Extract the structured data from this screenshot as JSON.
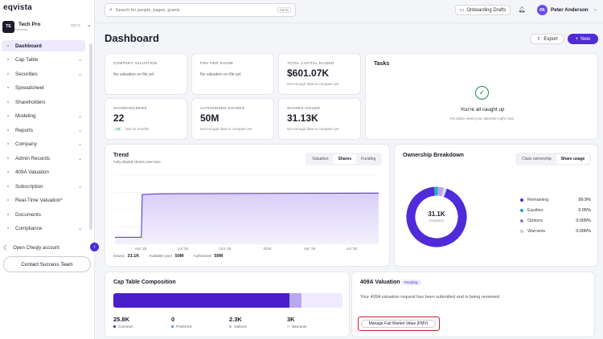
{
  "app": {
    "logo": "eqvista"
  },
  "org": {
    "initials": "TE",
    "name": "Tech Pro",
    "plan": "Premium",
    "shortcut": "Ctrl O"
  },
  "nav": [
    {
      "label": "Dashboard",
      "icon": "dashboard-icon",
      "active": true,
      "chev": false
    },
    {
      "label": "Cap Table",
      "icon": "cap-table-icon",
      "chev": true
    },
    {
      "label": "Securities",
      "icon": "securities-icon",
      "chev": true
    },
    {
      "label": "Spreadsheet",
      "icon": "spreadsheet-icon",
      "chev": false
    },
    {
      "label": "Shareholders",
      "icon": "shareholders-icon",
      "chev": false
    },
    {
      "label": "Modeling",
      "icon": "modeling-icon",
      "chev": true
    },
    {
      "label": "Reports",
      "icon": "reports-icon",
      "chev": true
    },
    {
      "label": "Company",
      "icon": "company-icon",
      "chev": true
    },
    {
      "label": "Admin Records",
      "icon": "admin-records-icon",
      "chev": true
    },
    {
      "label": "409A Valuation",
      "icon": "valuation-icon",
      "chev": false
    },
    {
      "label": "Subscription",
      "icon": "subscription-icon",
      "chev": true
    },
    {
      "label": "Real-Time Valuation*",
      "icon": "realtime-icon",
      "chev": false
    },
    {
      "label": "Documents",
      "icon": "documents-icon",
      "chev": false
    },
    {
      "label": "Compliance",
      "icon": "compliance-icon",
      "chev": true
    }
  ],
  "sidebar_footer": {
    "cheqly": "Open Cheqly account",
    "support": "Contact Success Team"
  },
  "topbar": {
    "search_placeholder": "Search for people, pages, grants",
    "search_kbd": "Ctrl K",
    "onboarding": "Onboarding Drafts",
    "user_initials": "PA",
    "user_name": "Peter Anderson"
  },
  "page": {
    "title": "Dashboard",
    "export": "Export",
    "new": "New"
  },
  "stats": {
    "company_valuation": {
      "label": "COMPANY VALUATION",
      "text": "No valuation on file yet"
    },
    "fmv": {
      "label": "FMV PER SHARE",
      "text": "No valuation on file yet"
    },
    "capital": {
      "label": "TOTAL CAPITAL RAISED",
      "value": "$601.07K",
      "note": "Not enough data to compare yet"
    },
    "shareholders": {
      "label": "SHAREHOLDERS",
      "value": "22",
      "delta": "+4",
      "note": "last 12 months"
    },
    "authorized": {
      "label": "AUTHORIZED SHARES",
      "value": "50M",
      "note": "Not enough data to compare yet"
    },
    "issued": {
      "label": "SHARES ISSUED",
      "value": "31.13K",
      "note": "Not enough data to compare yet"
    }
  },
  "tasks": {
    "title": "Tasks",
    "heading": "You're all caught up",
    "text": "No tasks need your attention right now."
  },
  "trend": {
    "title": "Trend",
    "subtitle": "Fully-diluted shares over time",
    "tabs": [
      "Valuation",
      "Shares",
      "Funding"
    ],
    "active_tab": "Shares",
    "footer": [
      {
        "k": "Issued",
        "v": "31.1K"
      },
      {
        "k": "Available pool",
        "v": "50M"
      },
      {
        "k": "Authorized",
        "v": "50M"
      }
    ]
  },
  "chart_data": {
    "type": "area",
    "x_ticks": [
      "Apr '25",
      "Jul '25",
      "Oct '25",
      "2026",
      "Apr '26",
      "Jul '26"
    ],
    "x": [
      0,
      0.6,
      0.62,
      1.0,
      6.0
    ],
    "values": [
      0.1,
      0.1,
      0.72,
      0.73,
      0.74
    ],
    "ylim": [
      0,
      1
    ]
  },
  "ownership": {
    "title": "Ownership Breakdown",
    "tabs": [
      "Class ownership",
      "Share usage"
    ],
    "active_tab": "Share usage",
    "center_value": "31.1K",
    "center_label": "SHARES",
    "legend": [
      {
        "label": "Remaining",
        "value": "99.9%",
        "color": "#4f2bd9"
      },
      {
        "label": "Equities",
        "value": "0.05%",
        "color": "#2aa6c9"
      },
      {
        "label": "Options",
        "value": "0.005%",
        "color": "#8a7fe0"
      },
      {
        "label": "Warrants",
        "value": "0.006%",
        "color": "#c7c2ee"
      }
    ],
    "donut": [
      {
        "color": "#4f2bd9",
        "frac": 0.93
      },
      {
        "color": "#2aa6c9",
        "frac": 0.02
      },
      {
        "color": "#b3a8f0",
        "frac": 0.03
      },
      {
        "color": "#dcd8f7",
        "frac": 0.02
      }
    ]
  },
  "captable": {
    "title": "Cap Table Composition",
    "bar": [
      {
        "frac": 0.77,
        "color": "#4a1ec8"
      },
      {
        "frac": 0.05,
        "color": "#b8a8ef"
      },
      {
        "frac": 0.18,
        "color": "#efeaff"
      }
    ],
    "stats": [
      {
        "value": "25.8K",
        "label": "Common",
        "color": "#4a1ec8"
      },
      {
        "value": "0",
        "label": "Preferred",
        "color": "#2aa6c9"
      },
      {
        "value": "2.3K",
        "label": "Options",
        "color": "#b8a8ef"
      },
      {
        "value": "3K",
        "label": "Warrants",
        "color": "#d8d2f5"
      }
    ]
  },
  "valuation409a": {
    "title": "409A Valuation",
    "badge": "Pending",
    "text": "Your 409A valuation request has been submitted and is being reviewed.",
    "button": "Manage Fair Market Value (FMV)"
  }
}
